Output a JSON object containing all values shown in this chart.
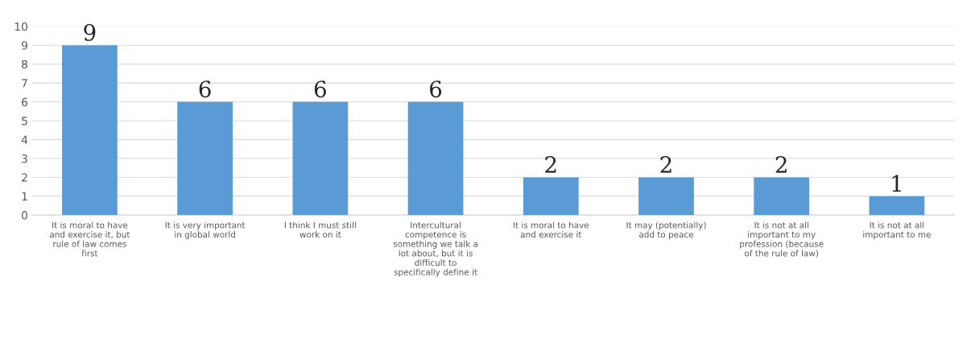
{
  "chart_data": {
    "type": "bar",
    "categories": [
      "It is moral to have\nand exercise it, but\nrule of law comes\nfirst",
      "It is very important\nin global world",
      "I think I must still\nwork on it",
      "Intercultural\ncompetence is\nsomething we talk a\nlot about, but it is\ndifficult to\nspecifically define it",
      "It is moral to have\nand exercise it",
      "It may (potentially)\nadd to peace",
      "It is not at all\nimportant to my\nprofession (because\nof the rule of law)",
      "It is not at all\nimportant to me"
    ],
    "values": [
      9,
      6,
      6,
      6,
      2,
      2,
      2,
      1
    ],
    "color": "#5b9bd5",
    "ylim": [
      0,
      10
    ],
    "yticks": [
      0,
      1,
      2,
      3,
      4,
      5,
      6,
      7,
      8,
      9,
      10
    ],
    "grid": "y",
    "data_labels": true
  }
}
